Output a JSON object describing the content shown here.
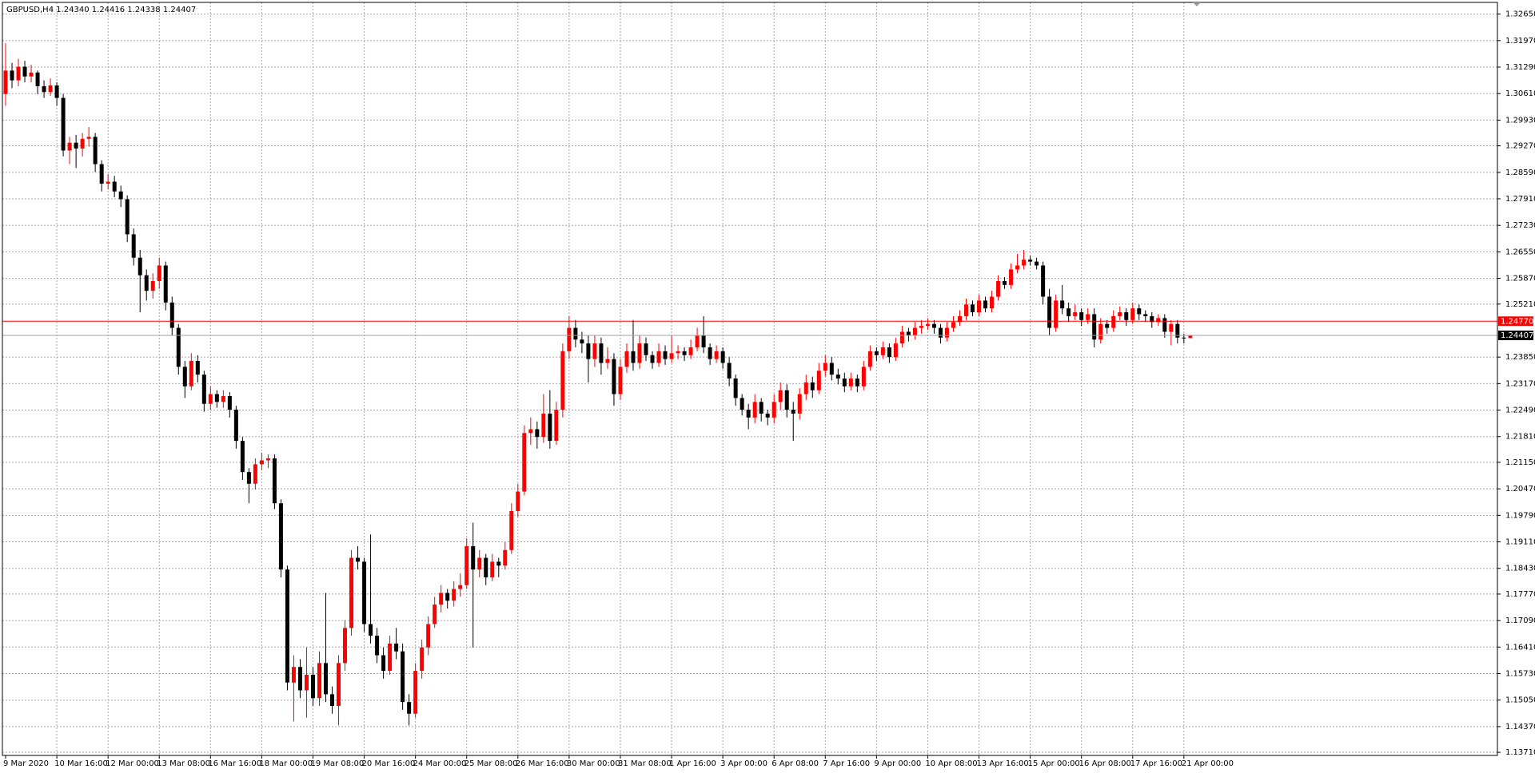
{
  "chart_data": {
    "type": "candlestick",
    "title": "GBPUSD,H4  1.24340 1.24416 1.24338 1.24407",
    "bull_color": "#ff0000",
    "bear_color": "#000000",
    "grid": true,
    "ylim": [
      1.1363,
      1.3295
    ],
    "yticks": [
      {
        "value": 1.3265,
        "label": "1.32650"
      },
      {
        "value": 1.3197,
        "label": "1.31970"
      },
      {
        "value": 1.3129,
        "label": "1.31290"
      },
      {
        "value": 1.3061,
        "label": "1.30610"
      },
      {
        "value": 1.2993,
        "label": "1.29930"
      },
      {
        "value": 1.2927,
        "label": "1.29270"
      },
      {
        "value": 1.2859,
        "label": "1.28590"
      },
      {
        "value": 1.2791,
        "label": "1.27910"
      },
      {
        "value": 1.2723,
        "label": "1.27230"
      },
      {
        "value": 1.2655,
        "label": "1.26550"
      },
      {
        "value": 1.2587,
        "label": "1.25870"
      },
      {
        "value": 1.2521,
        "label": "1.25210"
      },
      {
        "value": 1.2385,
        "label": "1.23850"
      },
      {
        "value": 1.2317,
        "label": "1.23170"
      },
      {
        "value": 1.2249,
        "label": "1.22490"
      },
      {
        "value": 1.2181,
        "label": "1.21810"
      },
      {
        "value": 1.2115,
        "label": "1.21150"
      },
      {
        "value": 1.2047,
        "label": "1.20470"
      },
      {
        "value": 1.1979,
        "label": "1.19790"
      },
      {
        "value": 1.1911,
        "label": "1.19110"
      },
      {
        "value": 1.1843,
        "label": "1.18430"
      },
      {
        "value": 1.1777,
        "label": "1.17770"
      },
      {
        "value": 1.1709,
        "label": "1.17090"
      },
      {
        "value": 1.1641,
        "label": "1.16410"
      },
      {
        "value": 1.1573,
        "label": "1.15730"
      },
      {
        "value": 1.1505,
        "label": "1.15050"
      },
      {
        "value": 1.1437,
        "label": "1.14370"
      },
      {
        "value": 1.1371,
        "label": "1.13710"
      }
    ],
    "price_lines": [
      {
        "value": 1.2477,
        "label": "1.24770",
        "color": "#ff0000"
      },
      {
        "value": 1.24407,
        "label": "1.24407",
        "color": "#a0a0a0"
      }
    ],
    "categories": [
      "9 Mar 2020",
      null,
      null,
      null,
      null,
      null,
      null,
      null,
      "10 Mar 16:00",
      null,
      null,
      null,
      null,
      null,
      null,
      null,
      "12 Mar 00:00",
      null,
      null,
      null,
      null,
      null,
      null,
      null,
      "13 Mar 08:00",
      null,
      null,
      null,
      null,
      null,
      null,
      null,
      "16 Mar 16:00",
      null,
      null,
      null,
      null,
      null,
      null,
      null,
      "18 Mar 00:00",
      null,
      null,
      null,
      null,
      null,
      null,
      null,
      "19 Mar 08:00",
      null,
      null,
      null,
      null,
      null,
      null,
      null,
      "20 Mar 16:00",
      null,
      null,
      null,
      null,
      null,
      null,
      null,
      "24 Mar 00:00",
      null,
      null,
      null,
      null,
      null,
      null,
      null,
      "25 Mar 08:00",
      null,
      null,
      null,
      null,
      null,
      null,
      null,
      "26 Mar 16:00",
      null,
      null,
      null,
      null,
      null,
      null,
      null,
      "30 Mar 00:00",
      null,
      null,
      null,
      null,
      null,
      null,
      null,
      "31 Mar 08:00",
      null,
      null,
      null,
      null,
      null,
      null,
      null,
      "1 Apr 16:00",
      null,
      null,
      null,
      null,
      null,
      null,
      null,
      "3 Apr 00:00",
      null,
      null,
      null,
      null,
      null,
      null,
      null,
      "6 Apr 08:00",
      null,
      null,
      null,
      null,
      null,
      null,
      null,
      "7 Apr 16:00",
      null,
      null,
      null,
      null,
      null,
      null,
      null,
      "9 Apr 00:00",
      null,
      null,
      null,
      null,
      null,
      null,
      null,
      "10 Apr 08:00",
      null,
      null,
      null,
      null,
      null,
      null,
      null,
      "13 Apr 16:00",
      null,
      null,
      null,
      null,
      null,
      null,
      null,
      "15 Apr 00:00",
      null,
      null,
      null,
      null,
      null,
      null,
      null,
      "16 Apr 08:00",
      null,
      null,
      null,
      null,
      null,
      null,
      null,
      "17 Apr 16:00",
      null,
      null,
      null,
      null,
      null,
      null,
      null,
      "21 Apr 00:00",
      null
    ],
    "candles": [
      [
        1.306,
        1.319,
        1.303,
        1.312
      ],
      [
        1.312,
        1.314,
        1.3075,
        1.3095
      ],
      [
        1.3095,
        1.315,
        1.308,
        1.313
      ],
      [
        1.313,
        1.3145,
        1.309,
        1.3105
      ],
      [
        1.3105,
        1.3135,
        1.309,
        1.3115
      ],
      [
        1.3115,
        1.312,
        1.306,
        1.308
      ],
      [
        1.308,
        1.3095,
        1.305,
        1.3065
      ],
      [
        1.3065,
        1.31,
        1.3055,
        1.3082
      ],
      [
        1.3082,
        1.309,
        1.303,
        1.305
      ],
      [
        1.305,
        1.306,
        1.29,
        1.2915
      ],
      [
        1.2915,
        1.295,
        1.288,
        1.2935
      ],
      [
        1.2935,
        1.2955,
        1.287,
        1.292
      ],
      [
        1.292,
        1.296,
        1.29,
        1.2945
      ],
      [
        1.2945,
        1.2975,
        1.2925,
        1.295
      ],
      [
        1.295,
        1.296,
        1.286,
        1.288
      ],
      [
        1.288,
        1.289,
        1.281,
        1.283
      ],
      [
        1.283,
        1.2855,
        1.2815,
        1.2835
      ],
      [
        1.2835,
        1.285,
        1.2795,
        1.281
      ],
      [
        1.281,
        1.2825,
        1.277,
        1.279
      ],
      [
        1.279,
        1.28,
        1.268,
        1.27
      ],
      [
        1.27,
        1.2715,
        1.262,
        1.264
      ],
      [
        1.264,
        1.266,
        1.25,
        1.2595
      ],
      [
        1.2595,
        1.261,
        1.253,
        1.2555
      ],
      [
        1.2555,
        1.26,
        1.2535,
        1.258
      ],
      [
        1.258,
        1.264,
        1.256,
        1.262
      ],
      [
        1.262,
        1.263,
        1.2505,
        1.2525
      ],
      [
        1.2525,
        1.254,
        1.244,
        1.246
      ],
      [
        1.246,
        1.247,
        1.234,
        1.236
      ],
      [
        1.236,
        1.2375,
        1.228,
        1.231
      ],
      [
        1.231,
        1.2395,
        1.23,
        1.2375
      ],
      [
        1.2375,
        1.239,
        1.232,
        1.234
      ],
      [
        1.234,
        1.235,
        1.2245,
        1.2265
      ],
      [
        1.2265,
        1.231,
        1.225,
        1.229
      ],
      [
        1.229,
        1.23,
        1.2255,
        1.227
      ],
      [
        1.227,
        1.23,
        1.2255,
        1.2285
      ],
      [
        1.2285,
        1.2295,
        1.223,
        1.225
      ],
      [
        1.225,
        1.226,
        1.215,
        1.217
      ],
      [
        1.217,
        1.218,
        1.207,
        1.209
      ],
      [
        1.209,
        1.21,
        1.201,
        1.206
      ],
      [
        1.206,
        1.2125,
        1.2045,
        1.211
      ],
      [
        1.211,
        1.214,
        1.2095,
        1.212
      ],
      [
        1.212,
        1.2135,
        1.21,
        1.2125
      ],
      [
        1.2125,
        1.2135,
        1.1995,
        1.201
      ],
      [
        1.201,
        1.202,
        1.182,
        1.184
      ],
      [
        1.184,
        1.185,
        1.153,
        1.155
      ],
      [
        1.155,
        1.162,
        1.145,
        1.159
      ],
      [
        1.159,
        1.161,
        1.151,
        1.153
      ],
      [
        1.153,
        1.164,
        1.146,
        1.157
      ],
      [
        1.157,
        1.159,
        1.149,
        1.151
      ],
      [
        1.151,
        1.163,
        1.149,
        1.16
      ],
      [
        1.16,
        1.178,
        1.15,
        1.152
      ],
      [
        1.152,
        1.154,
        1.147,
        1.149
      ],
      [
        1.149,
        1.162,
        1.144,
        1.16
      ],
      [
        1.16,
        1.171,
        1.158,
        1.169
      ],
      [
        1.169,
        1.189,
        1.167,
        1.187
      ],
      [
        1.187,
        1.19,
        1.184,
        1.186
      ],
      [
        1.186,
        1.187,
        1.168,
        1.17
      ],
      [
        1.17,
        1.193,
        1.165,
        1.167
      ],
      [
        1.167,
        1.169,
        1.16,
        1.162
      ],
      [
        1.162,
        1.164,
        1.156,
        1.158
      ],
      [
        1.158,
        1.167,
        1.157,
        1.165
      ],
      [
        1.165,
        1.169,
        1.161,
        1.163
      ],
      [
        1.163,
        1.165,
        1.148,
        1.15
      ],
      [
        1.15,
        1.152,
        1.144,
        1.147
      ],
      [
        1.147,
        1.16,
        1.146,
        1.158
      ],
      [
        1.158,
        1.166,
        1.156,
        1.164
      ],
      [
        1.164,
        1.172,
        1.162,
        1.17
      ],
      [
        1.17,
        1.177,
        1.169,
        1.175
      ],
      [
        1.175,
        1.18,
        1.173,
        1.178
      ],
      [
        1.178,
        1.179,
        1.174,
        1.176
      ],
      [
        1.176,
        1.181,
        1.1745,
        1.179
      ],
      [
        1.179,
        1.183,
        1.177,
        1.18
      ],
      [
        1.18,
        1.192,
        1.179,
        1.19
      ],
      [
        1.19,
        1.196,
        1.164,
        1.184
      ],
      [
        1.184,
        1.189,
        1.182,
        1.187
      ],
      [
        1.187,
        1.188,
        1.18,
        1.182
      ],
      [
        1.182,
        1.188,
        1.181,
        1.186
      ],
      [
        1.186,
        1.187,
        1.182,
        1.185
      ],
      [
        1.185,
        1.191,
        1.184,
        1.189
      ],
      [
        1.189,
        1.201,
        1.188,
        1.199
      ],
      [
        1.199,
        1.206,
        1.1975,
        1.204
      ],
      [
        1.204,
        1.221,
        1.203,
        1.219
      ],
      [
        1.219,
        1.223,
        1.216,
        1.22
      ],
      [
        1.22,
        1.222,
        1.215,
        1.218
      ],
      [
        1.218,
        1.229,
        1.2165,
        1.224
      ],
      [
        1.224,
        1.23,
        1.215,
        1.217
      ],
      [
        1.217,
        1.227,
        1.216,
        1.225
      ],
      [
        1.225,
        1.242,
        1.223,
        1.24
      ],
      [
        1.24,
        1.249,
        1.238,
        1.246
      ],
      [
        1.246,
        1.248,
        1.241,
        1.243
      ],
      [
        1.243,
        1.245,
        1.2395,
        1.242
      ],
      [
        1.242,
        1.244,
        1.232,
        1.238
      ],
      [
        1.238,
        1.244,
        1.236,
        1.242
      ],
      [
        1.242,
        1.2435,
        1.234,
        1.237
      ],
      [
        1.237,
        1.241,
        1.2355,
        1.238
      ],
      [
        1.238,
        1.2395,
        1.226,
        1.229
      ],
      [
        1.229,
        1.238,
        1.2275,
        1.236
      ],
      [
        1.236,
        1.242,
        1.2345,
        1.24
      ],
      [
        1.24,
        1.248,
        1.235,
        1.237
      ],
      [
        1.237,
        1.244,
        1.2355,
        1.242
      ],
      [
        1.242,
        1.2435,
        1.2375,
        1.239
      ],
      [
        1.239,
        1.24,
        1.2355,
        1.237
      ],
      [
        1.237,
        1.242,
        1.236,
        1.24
      ],
      [
        1.24,
        1.2415,
        1.2365,
        1.238
      ],
      [
        1.238,
        1.244,
        1.237,
        1.2395
      ],
      [
        1.2395,
        1.2415,
        1.238,
        1.24
      ],
      [
        1.24,
        1.241,
        1.2375,
        1.239
      ],
      [
        1.239,
        1.243,
        1.238,
        1.241
      ],
      [
        1.241,
        1.246,
        1.24,
        1.244
      ],
      [
        1.244,
        1.249,
        1.2395,
        1.241
      ],
      [
        1.241,
        1.242,
        1.2365,
        1.238
      ],
      [
        1.238,
        1.2415,
        1.237,
        1.24
      ],
      [
        1.24,
        1.241,
        1.2355,
        1.237
      ],
      [
        1.237,
        1.2385,
        1.231,
        1.233
      ],
      [
        1.233,
        1.234,
        1.226,
        1.228
      ],
      [
        1.228,
        1.229,
        1.2235,
        1.225
      ],
      [
        1.225,
        1.2265,
        1.22,
        1.223
      ],
      [
        1.223,
        1.229,
        1.2215,
        1.227
      ],
      [
        1.227,
        1.228,
        1.222,
        1.224
      ],
      [
        1.224,
        1.225,
        1.221,
        1.223
      ],
      [
        1.223,
        1.229,
        1.2215,
        1.227
      ],
      [
        1.227,
        1.232,
        1.225,
        1.23
      ],
      [
        1.23,
        1.2315,
        1.223,
        1.225
      ],
      [
        1.225,
        1.227,
        1.217,
        1.224
      ],
      [
        1.224,
        1.2305,
        1.2225,
        1.229
      ],
      [
        1.229,
        1.234,
        1.2275,
        1.232
      ],
      [
        1.232,
        1.2335,
        1.228,
        1.23
      ],
      [
        1.23,
        1.237,
        1.229,
        1.235
      ],
      [
        1.235,
        1.239,
        1.2335,
        1.237
      ],
      [
        1.237,
        1.2385,
        1.2325,
        1.234
      ],
      [
        1.234,
        1.2355,
        1.2315,
        1.233
      ],
      [
        1.233,
        1.2345,
        1.2295,
        1.231
      ],
      [
        1.231,
        1.2345,
        1.23,
        1.233
      ],
      [
        1.233,
        1.234,
        1.2295,
        1.231
      ],
      [
        1.231,
        1.2375,
        1.23,
        1.236
      ],
      [
        1.236,
        1.2415,
        1.235,
        1.24
      ],
      [
        1.24,
        1.241,
        1.2375,
        1.239
      ],
      [
        1.239,
        1.2425,
        1.238,
        1.241
      ],
      [
        1.241,
        1.242,
        1.237,
        1.2385
      ],
      [
        1.2385,
        1.2435,
        1.2375,
        1.242
      ],
      [
        1.242,
        1.2465,
        1.241,
        1.245
      ],
      [
        1.245,
        1.246,
        1.2425,
        1.244
      ],
      [
        1.244,
        1.2475,
        1.243,
        1.246
      ],
      [
        1.246,
        1.248,
        1.2445,
        1.2465
      ],
      [
        1.2465,
        1.2485,
        1.2455,
        1.247
      ],
      [
        1.247,
        1.248,
        1.2445,
        1.246
      ],
      [
        1.246,
        1.247,
        1.242,
        1.2435
      ],
      [
        1.2435,
        1.2475,
        1.2425,
        1.246
      ],
      [
        1.246,
        1.249,
        1.245,
        1.2475
      ],
      [
        1.2475,
        1.2505,
        1.2465,
        1.249
      ],
      [
        1.249,
        1.2535,
        1.248,
        1.252
      ],
      [
        1.252,
        1.253,
        1.249,
        1.25
      ],
      [
        1.25,
        1.2545,
        1.249,
        1.253
      ],
      [
        1.253,
        1.254,
        1.25,
        1.251
      ],
      [
        1.251,
        1.2555,
        1.25,
        1.254
      ],
      [
        1.254,
        1.2595,
        1.253,
        1.258
      ],
      [
        1.258,
        1.259,
        1.256,
        1.257
      ],
      [
        1.257,
        1.2625,
        1.256,
        1.261
      ],
      [
        1.261,
        1.265,
        1.26,
        1.262
      ],
      [
        1.262,
        1.266,
        1.261,
        1.2635
      ],
      [
        1.2635,
        1.2645,
        1.262,
        1.263
      ],
      [
        1.263,
        1.264,
        1.261,
        1.262
      ],
      [
        1.262,
        1.263,
        1.252,
        1.254
      ],
      [
        1.254,
        1.256,
        1.244,
        1.246
      ],
      [
        1.246,
        1.2545,
        1.245,
        1.253
      ],
      [
        1.253,
        1.257,
        1.2495,
        1.251
      ],
      [
        1.251,
        1.2525,
        1.2475,
        1.249
      ],
      [
        1.249,
        1.252,
        1.248,
        1.25
      ],
      [
        1.25,
        1.251,
        1.2465,
        1.248
      ],
      [
        1.248,
        1.251,
        1.247,
        1.2495
      ],
      [
        1.2495,
        1.251,
        1.241,
        1.243
      ],
      [
        1.243,
        1.2485,
        1.242,
        1.247
      ],
      [
        1.247,
        1.248,
        1.2445,
        1.246
      ],
      [
        1.246,
        1.2505,
        1.245,
        1.249
      ],
      [
        1.249,
        1.2515,
        1.248,
        1.25
      ],
      [
        1.25,
        1.251,
        1.2465,
        1.248
      ],
      [
        1.248,
        1.2525,
        1.247,
        1.251
      ],
      [
        1.251,
        1.252,
        1.248,
        1.2495
      ],
      [
        1.2495,
        1.2505,
        1.2475,
        1.249
      ],
      [
        1.249,
        1.25,
        1.246,
        1.2475
      ],
      [
        1.2475,
        1.2495,
        1.2465,
        1.2485
      ],
      [
        1.2485,
        1.2495,
        1.2435,
        1.245
      ],
      [
        1.245,
        1.248,
        1.2415,
        1.247
      ],
      [
        1.247,
        1.248,
        1.242,
        1.2435
      ],
      [
        1.2435,
        1.2445,
        1.242,
        1.2434
      ],
      [
        1.2434,
        1.24416,
        1.24338,
        1.24407
      ]
    ]
  }
}
